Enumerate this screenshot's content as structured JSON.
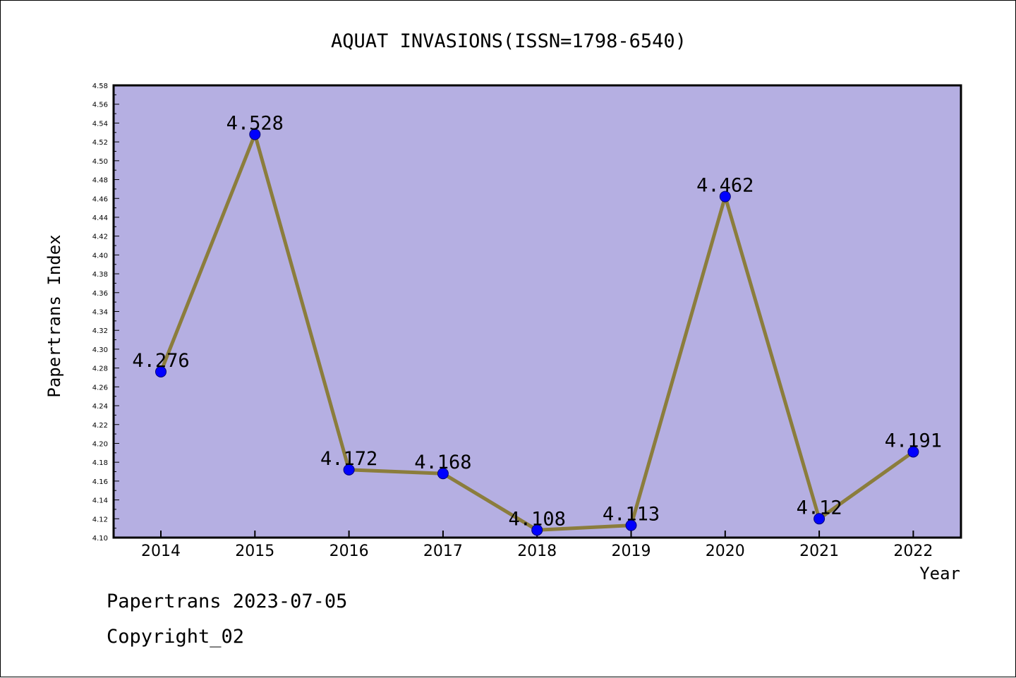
{
  "chart_data": {
    "type": "line",
    "title": "AQUAT INVASIONS(ISSN=1798-6540)",
    "xlabel": "Year",
    "ylabel": "Papertrans Index",
    "categories": [
      "2014",
      "2015",
      "2016",
      "2017",
      "2018",
      "2019",
      "2020",
      "2021",
      "2022"
    ],
    "values": [
      4.276,
      4.528,
      4.172,
      4.168,
      4.108,
      4.113,
      4.462,
      4.12,
      4.191
    ],
    "data_labels": [
      "4.276",
      "4.528",
      "4.172",
      "4.168",
      "4.108",
      "4.113",
      "4.462",
      "4.12",
      "4.191"
    ],
    "ylim": [
      4.1,
      4.58
    ],
    "ytick_step": 0.02,
    "ytick_decimals": 2,
    "grid": false,
    "colors": {
      "plot_background": "#b5afe2",
      "line": "#8b7d3c",
      "marker": "#0000ff",
      "marker_edge": "#00007a"
    }
  },
  "footer": {
    "line1": "Papertrans 2023-07-05",
    "line2": "Copyright_02"
  }
}
